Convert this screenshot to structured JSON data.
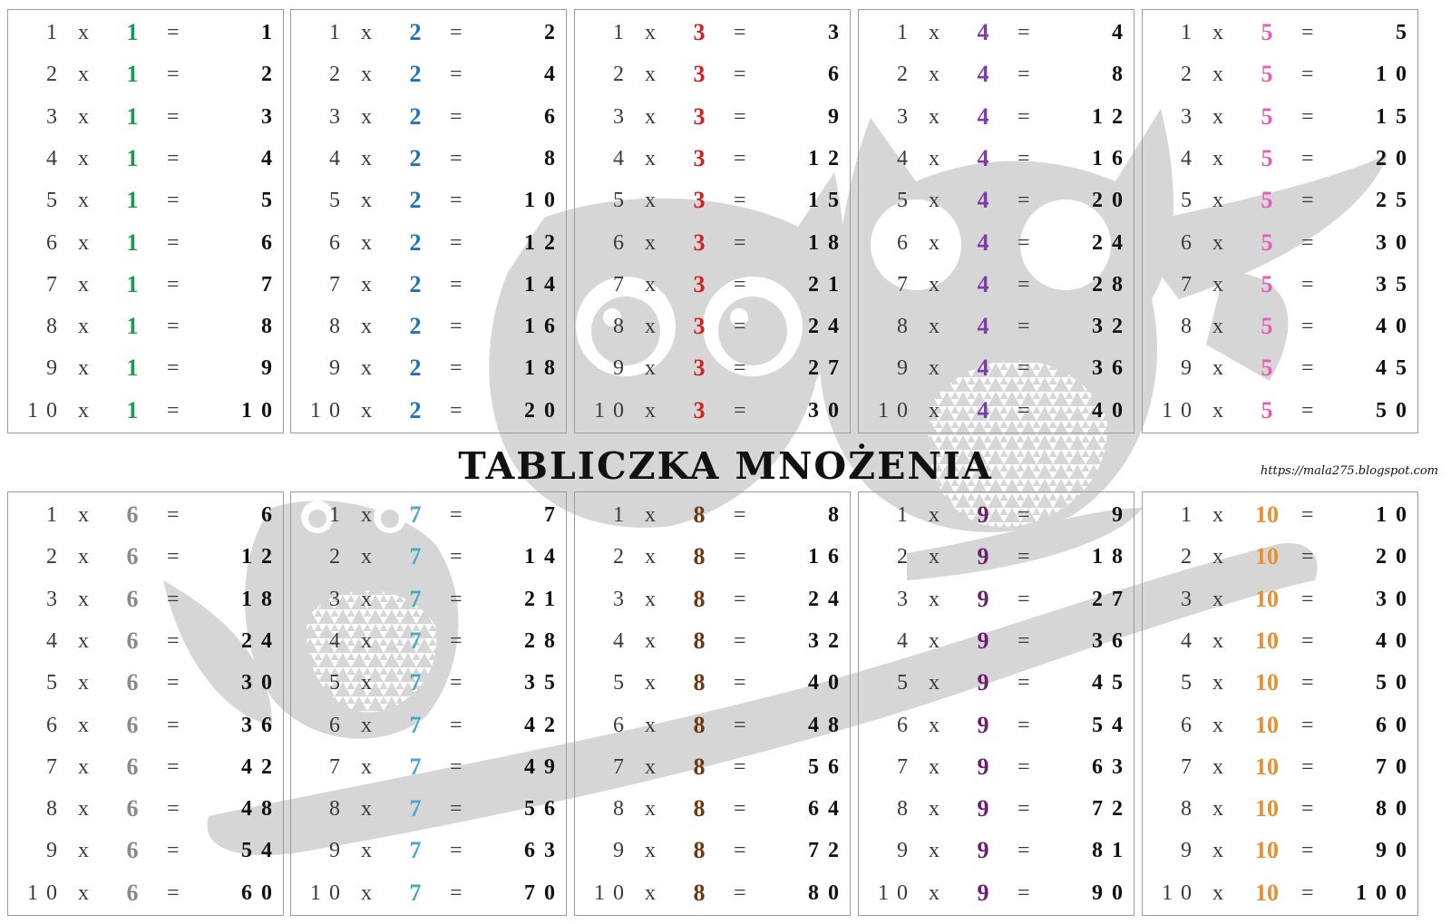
{
  "title": "TABLICZKA MNOŻENIA",
  "url": "https://mala275.blogspot.com",
  "background_art": "owl-on-branch-watermark",
  "colors": {
    "border": "#9a9a9a",
    "watermark": "#d6d6d6"
  },
  "tables": [
    {
      "factor": "1",
      "color": "#1a9a52",
      "rows": [
        {
          "a": "1",
          "x": "x",
          "f": "1",
          "eq": "=",
          "p": "1"
        },
        {
          "a": "2",
          "x": "x",
          "f": "1",
          "eq": "=",
          "p": "2"
        },
        {
          "a": "3",
          "x": "x",
          "f": "1",
          "eq": "=",
          "p": "3"
        },
        {
          "a": "4",
          "x": "x",
          "f": "1",
          "eq": "=",
          "p": "4"
        },
        {
          "a": "5",
          "x": "x",
          "f": "1",
          "eq": "=",
          "p": "5"
        },
        {
          "a": "6",
          "x": "x",
          "f": "1",
          "eq": "=",
          "p": "6"
        },
        {
          "a": "7",
          "x": "x",
          "f": "1",
          "eq": "=",
          "p": "7"
        },
        {
          "a": "8",
          "x": "x",
          "f": "1",
          "eq": "=",
          "p": "8"
        },
        {
          "a": "9",
          "x": "x",
          "f": "1",
          "eq": "=",
          "p": "9"
        },
        {
          "a": "10",
          "x": "x",
          "f": "1",
          "eq": "=",
          "p": "10"
        }
      ]
    },
    {
      "factor": "2",
      "color": "#1f72b8",
      "rows": [
        {
          "a": "1",
          "x": "x",
          "f": "2",
          "eq": "=",
          "p": "2"
        },
        {
          "a": "2",
          "x": "x",
          "f": "2",
          "eq": "=",
          "p": "4"
        },
        {
          "a": "3",
          "x": "x",
          "f": "2",
          "eq": "=",
          "p": "6"
        },
        {
          "a": "4",
          "x": "x",
          "f": "2",
          "eq": "=",
          "p": "8"
        },
        {
          "a": "5",
          "x": "x",
          "f": "2",
          "eq": "=",
          "p": "10"
        },
        {
          "a": "6",
          "x": "x",
          "f": "2",
          "eq": "=",
          "p": "12"
        },
        {
          "a": "7",
          "x": "x",
          "f": "2",
          "eq": "=",
          "p": "14"
        },
        {
          "a": "8",
          "x": "x",
          "f": "2",
          "eq": "=",
          "p": "16"
        },
        {
          "a": "9",
          "x": "x",
          "f": "2",
          "eq": "=",
          "p": "18"
        },
        {
          "a": "10",
          "x": "x",
          "f": "2",
          "eq": "=",
          "p": "20"
        }
      ]
    },
    {
      "factor": "3",
      "color": "#d42020",
      "rows": [
        {
          "a": "1",
          "x": "x",
          "f": "3",
          "eq": "=",
          "p": "3"
        },
        {
          "a": "2",
          "x": "x",
          "f": "3",
          "eq": "=",
          "p": "6"
        },
        {
          "a": "3",
          "x": "x",
          "f": "3",
          "eq": "=",
          "p": "9"
        },
        {
          "a": "4",
          "x": "x",
          "f": "3",
          "eq": "=",
          "p": "12"
        },
        {
          "a": "5",
          "x": "x",
          "f": "3",
          "eq": "=",
          "p": "15"
        },
        {
          "a": "6",
          "x": "x",
          "f": "3",
          "eq": "=",
          "p": "18"
        },
        {
          "a": "7",
          "x": "x",
          "f": "3",
          "eq": "=",
          "p": "21"
        },
        {
          "a": "8",
          "x": "x",
          "f": "3",
          "eq": "=",
          "p": "24"
        },
        {
          "a": "9",
          "x": "x",
          "f": "3",
          "eq": "=",
          "p": "27"
        },
        {
          "a": "10",
          "x": "x",
          "f": "3",
          "eq": "=",
          "p": "30"
        }
      ]
    },
    {
      "factor": "4",
      "color": "#7b3ea8",
      "rows": [
        {
          "a": "1",
          "x": "x",
          "f": "4",
          "eq": "=",
          "p": "4"
        },
        {
          "a": "2",
          "x": "x",
          "f": "4",
          "eq": "=",
          "p": "8"
        },
        {
          "a": "3",
          "x": "x",
          "f": "4",
          "eq": "=",
          "p": "12"
        },
        {
          "a": "4",
          "x": "x",
          "f": "4",
          "eq": "=",
          "p": "16"
        },
        {
          "a": "5",
          "x": "x",
          "f": "4",
          "eq": "=",
          "p": "20"
        },
        {
          "a": "6",
          "x": "x",
          "f": "4",
          "eq": "=",
          "p": "24"
        },
        {
          "a": "7",
          "x": "x",
          "f": "4",
          "eq": "=",
          "p": "28"
        },
        {
          "a": "8",
          "x": "x",
          "f": "4",
          "eq": "=",
          "p": "32"
        },
        {
          "a": "9",
          "x": "x",
          "f": "4",
          "eq": "=",
          "p": "36"
        },
        {
          "a": "10",
          "x": "x",
          "f": "4",
          "eq": "=",
          "p": "40"
        }
      ]
    },
    {
      "factor": "5",
      "color": "#e85cb8",
      "rows": [
        {
          "a": "1",
          "x": "x",
          "f": "5",
          "eq": "=",
          "p": "5"
        },
        {
          "a": "2",
          "x": "x",
          "f": "5",
          "eq": "=",
          "p": "10"
        },
        {
          "a": "3",
          "x": "x",
          "f": "5",
          "eq": "=",
          "p": "15"
        },
        {
          "a": "4",
          "x": "x",
          "f": "5",
          "eq": "=",
          "p": "20"
        },
        {
          "a": "5",
          "x": "x",
          "f": "5",
          "eq": "=",
          "p": "25"
        },
        {
          "a": "6",
          "x": "x",
          "f": "5",
          "eq": "=",
          "p": "30"
        },
        {
          "a": "7",
          "x": "x",
          "f": "5",
          "eq": "=",
          "p": "35"
        },
        {
          "a": "8",
          "x": "x",
          "f": "5",
          "eq": "=",
          "p": "40"
        },
        {
          "a": "9",
          "x": "x",
          "f": "5",
          "eq": "=",
          "p": "45"
        },
        {
          "a": "10",
          "x": "x",
          "f": "5",
          "eq": "=",
          "p": "50"
        }
      ]
    },
    {
      "factor": "6",
      "color": "#8a8a8a",
      "rows": [
        {
          "a": "1",
          "x": "x",
          "f": "6",
          "eq": "=",
          "p": "6"
        },
        {
          "a": "2",
          "x": "x",
          "f": "6",
          "eq": "=",
          "p": "12"
        },
        {
          "a": "3",
          "x": "x",
          "f": "6",
          "eq": "=",
          "p": "18"
        },
        {
          "a": "4",
          "x": "x",
          "f": "6",
          "eq": "=",
          "p": "24"
        },
        {
          "a": "5",
          "x": "x",
          "f": "6",
          "eq": "=",
          "p": "30"
        },
        {
          "a": "6",
          "x": "x",
          "f": "6",
          "eq": "=",
          "p": "36"
        },
        {
          "a": "7",
          "x": "x",
          "f": "6",
          "eq": "=",
          "p": "42"
        },
        {
          "a": "8",
          "x": "x",
          "f": "6",
          "eq": "=",
          "p": "48"
        },
        {
          "a": "9",
          "x": "x",
          "f": "6",
          "eq": "=",
          "p": "54"
        },
        {
          "a": "10",
          "x": "x",
          "f": "6",
          "eq": "=",
          "p": "60"
        }
      ]
    },
    {
      "factor": "7",
      "color": "#4aa8c6",
      "rows": [
        {
          "a": "1",
          "x": "x",
          "f": "7",
          "eq": "=",
          "p": "7"
        },
        {
          "a": "2",
          "x": "x",
          "f": "7",
          "eq": "=",
          "p": "14"
        },
        {
          "a": "3",
          "x": "x",
          "f": "7",
          "eq": "=",
          "p": "21"
        },
        {
          "a": "4",
          "x": "x",
          "f": "7",
          "eq": "=",
          "p": "28"
        },
        {
          "a": "5",
          "x": "x",
          "f": "7",
          "eq": "=",
          "p": "35"
        },
        {
          "a": "6",
          "x": "x",
          "f": "7",
          "eq": "=",
          "p": "42"
        },
        {
          "a": "7",
          "x": "x",
          "f": "7",
          "eq": "=",
          "p": "49"
        },
        {
          "a": "8",
          "x": "x",
          "f": "7",
          "eq": "=",
          "p": "56"
        },
        {
          "a": "9",
          "x": "x",
          "f": "7",
          "eq": "=",
          "p": "63"
        },
        {
          "a": "10",
          "x": "x",
          "f": "7",
          "eq": "=",
          "p": "70"
        }
      ]
    },
    {
      "factor": "8",
      "color": "#6b3a12",
      "rows": [
        {
          "a": "1",
          "x": "x",
          "f": "8",
          "eq": "=",
          "p": "8"
        },
        {
          "a": "2",
          "x": "x",
          "f": "8",
          "eq": "=",
          "p": "16"
        },
        {
          "a": "3",
          "x": "x",
          "f": "8",
          "eq": "=",
          "p": "24"
        },
        {
          "a": "4",
          "x": "x",
          "f": "8",
          "eq": "=",
          "p": "32"
        },
        {
          "a": "5",
          "x": "x",
          "f": "8",
          "eq": "=",
          "p": "40"
        },
        {
          "a": "6",
          "x": "x",
          "f": "8",
          "eq": "=",
          "p": "48"
        },
        {
          "a": "7",
          "x": "x",
          "f": "8",
          "eq": "=",
          "p": "56"
        },
        {
          "a": "8",
          "x": "x",
          "f": "8",
          "eq": "=",
          "p": "64"
        },
        {
          "a": "9",
          "x": "x",
          "f": "8",
          "eq": "=",
          "p": "72"
        },
        {
          "a": "10",
          "x": "x",
          "f": "8",
          "eq": "=",
          "p": "80"
        }
      ]
    },
    {
      "factor": "9",
      "color": "#6a1f6e",
      "rows": [
        {
          "a": "1",
          "x": "x",
          "f": "9",
          "eq": "=",
          "p": "9"
        },
        {
          "a": "2",
          "x": "x",
          "f": "9",
          "eq": "=",
          "p": "18"
        },
        {
          "a": "3",
          "x": "x",
          "f": "9",
          "eq": "=",
          "p": "27"
        },
        {
          "a": "4",
          "x": "x",
          "f": "9",
          "eq": "=",
          "p": "36"
        },
        {
          "a": "5",
          "x": "x",
          "f": "9",
          "eq": "=",
          "p": "45"
        },
        {
          "a": "6",
          "x": "x",
          "f": "9",
          "eq": "=",
          "p": "54"
        },
        {
          "a": "7",
          "x": "x",
          "f": "9",
          "eq": "=",
          "p": "63"
        },
        {
          "a": "8",
          "x": "x",
          "f": "9",
          "eq": "=",
          "p": "72"
        },
        {
          "a": "9",
          "x": "x",
          "f": "9",
          "eq": "=",
          "p": "81"
        },
        {
          "a": "10",
          "x": "x",
          "f": "9",
          "eq": "=",
          "p": "90"
        }
      ]
    },
    {
      "factor": "10",
      "color": "#e8902c",
      "rows": [
        {
          "a": "1",
          "x": "x",
          "f": "10",
          "eq": "=",
          "p": "10"
        },
        {
          "a": "2",
          "x": "x",
          "f": "10",
          "eq": "=",
          "p": "20"
        },
        {
          "a": "3",
          "x": "x",
          "f": "10",
          "eq": "=",
          "p": "30"
        },
        {
          "a": "4",
          "x": "x",
          "f": "10",
          "eq": "=",
          "p": "40"
        },
        {
          "a": "5",
          "x": "x",
          "f": "10",
          "eq": "=",
          "p": "50"
        },
        {
          "a": "6",
          "x": "x",
          "f": "10",
          "eq": "=",
          "p": "60"
        },
        {
          "a": "7",
          "x": "x",
          "f": "10",
          "eq": "=",
          "p": "70"
        },
        {
          "a": "8",
          "x": "x",
          "f": "10",
          "eq": "=",
          "p": "80"
        },
        {
          "a": "9",
          "x": "x",
          "f": "10",
          "eq": "=",
          "p": "90"
        },
        {
          "a": "10",
          "x": "x",
          "f": "10",
          "eq": "=",
          "p": "100"
        }
      ]
    }
  ]
}
